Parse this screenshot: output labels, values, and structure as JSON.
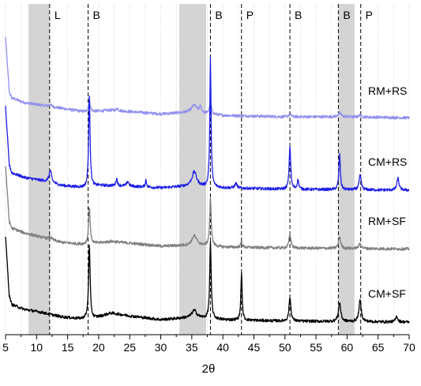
{
  "chart_data": {
    "type": "line",
    "xlabel": "2θ",
    "xlim": [
      5,
      70
    ],
    "xticks": [
      5,
      10,
      15,
      20,
      25,
      30,
      35,
      40,
      45,
      50,
      55,
      60,
      65,
      70
    ],
    "y_axis_visible": false,
    "grid": "vertical dotted minor lines",
    "shaded_regions": [
      [
        8.7,
        12.1
      ],
      [
        33.0,
        37.3
      ],
      [
        58.6,
        61.2
      ]
    ],
    "reference_lines": [
      {
        "x": 12.1,
        "label": "L"
      },
      {
        "x": 18.3,
        "label": "B"
      },
      {
        "x": 38.0,
        "label": "B"
      },
      {
        "x": 43.0,
        "label": "P"
      },
      {
        "x": 50.8,
        "label": "B"
      },
      {
        "x": 58.6,
        "label": "B"
      },
      {
        "x": 62.2,
        "label": "P"
      }
    ],
    "series": [
      {
        "name": "RM+RS",
        "color": "#8f8fef",
        "baseline": [
          [
            5,
            0.72
          ],
          [
            6,
            0.4
          ],
          [
            8,
            0.3
          ],
          [
            12,
            0.22
          ],
          [
            18,
            0.1
          ],
          [
            22,
            0.14
          ],
          [
            30,
            0.06
          ],
          [
            35,
            0.1
          ],
          [
            40,
            0.03
          ],
          [
            50,
            0.0
          ],
          [
            60,
            0.0
          ],
          [
            70,
            -0.02
          ]
        ],
        "peaks": [
          [
            12.2,
            0.04,
            0.3
          ],
          [
            18.5,
            0.25,
            0.18
          ],
          [
            23.0,
            0.05,
            0.2
          ],
          [
            35.4,
            0.15,
            0.5
          ],
          [
            36.4,
            0.12,
            0.2
          ],
          [
            38.0,
            0.3,
            0.15
          ],
          [
            50.8,
            0.05,
            0.25
          ],
          [
            58.8,
            0.08,
            0.3
          ],
          [
            62.1,
            0.04,
            0.25
          ]
        ]
      },
      {
        "name": "CM+RS",
        "color": "#1f1fe6",
        "baseline": [
          [
            5,
            0.75
          ],
          [
            6,
            0.32
          ],
          [
            8,
            0.22
          ],
          [
            11,
            0.15
          ],
          [
            14,
            0.05
          ],
          [
            18,
            0.0
          ],
          [
            20,
            0.05
          ],
          [
            24,
            0.04
          ],
          [
            30,
            0.0
          ],
          [
            35,
            0.04
          ],
          [
            40,
            0.0
          ],
          [
            50,
            -0.03
          ],
          [
            60,
            -0.04
          ],
          [
            70,
            -0.05
          ]
        ],
        "peaks": [
          [
            12.2,
            0.25,
            0.25
          ],
          [
            18.5,
            1.95,
            0.14
          ],
          [
            22.9,
            0.15,
            0.15
          ],
          [
            24.7,
            0.1,
            0.2
          ],
          [
            27.6,
            0.15,
            0.12
          ],
          [
            35.4,
            0.3,
            0.45
          ],
          [
            38.0,
            2.7,
            0.12
          ],
          [
            42.1,
            0.1,
            0.2
          ],
          [
            50.8,
            0.9,
            0.15
          ],
          [
            52.1,
            0.2,
            0.15
          ],
          [
            58.8,
            0.75,
            0.14
          ],
          [
            62.1,
            0.3,
            0.2
          ],
          [
            68.2,
            0.25,
            0.2
          ]
        ]
      },
      {
        "name": "RM+SF",
        "color": "#808080",
        "baseline": [
          [
            5,
            0.75
          ],
          [
            6,
            0.4
          ],
          [
            8,
            0.3
          ],
          [
            11,
            0.2
          ],
          [
            14,
            0.1
          ],
          [
            18,
            0.05
          ],
          [
            22,
            0.12
          ],
          [
            30,
            0.02
          ],
          [
            36,
            0.04
          ],
          [
            40,
            0.0
          ],
          [
            50,
            -0.02
          ],
          [
            60,
            -0.03
          ],
          [
            70,
            -0.04
          ]
        ],
        "peaks": [
          [
            12.2,
            0.05,
            0.3
          ],
          [
            18.5,
            0.8,
            0.16
          ],
          [
            35.4,
            0.2,
            0.45
          ],
          [
            38.0,
            1.0,
            0.15
          ],
          [
            43.0,
            0.12,
            0.15
          ],
          [
            50.8,
            0.3,
            0.18
          ],
          [
            58.8,
            0.25,
            0.2
          ],
          [
            62.1,
            0.1,
            0.25
          ]
        ]
      },
      {
        "name": "CM+SF",
        "color": "#000000",
        "baseline": [
          [
            5,
            0.8
          ],
          [
            6,
            0.32
          ],
          [
            8,
            0.22
          ],
          [
            11,
            0.15
          ],
          [
            14,
            0.06
          ],
          [
            17,
            0.02
          ],
          [
            19,
            0.02
          ],
          [
            22,
            0.14
          ],
          [
            25,
            0.08
          ],
          [
            30,
            0.0
          ],
          [
            35,
            0.05
          ],
          [
            40,
            0.0
          ],
          [
            50,
            -0.03
          ],
          [
            60,
            -0.04
          ],
          [
            70,
            -0.05
          ]
        ],
        "peaks": [
          [
            18.5,
            1.55,
            0.15
          ],
          [
            35.4,
            0.15,
            0.45
          ],
          [
            38.0,
            1.6,
            0.14
          ],
          [
            43.0,
            1.0,
            0.12
          ],
          [
            50.8,
            0.5,
            0.18
          ],
          [
            58.8,
            0.4,
            0.22
          ],
          [
            62.1,
            0.45,
            0.22
          ],
          [
            68.0,
            0.12,
            0.2
          ]
        ]
      }
    ]
  }
}
